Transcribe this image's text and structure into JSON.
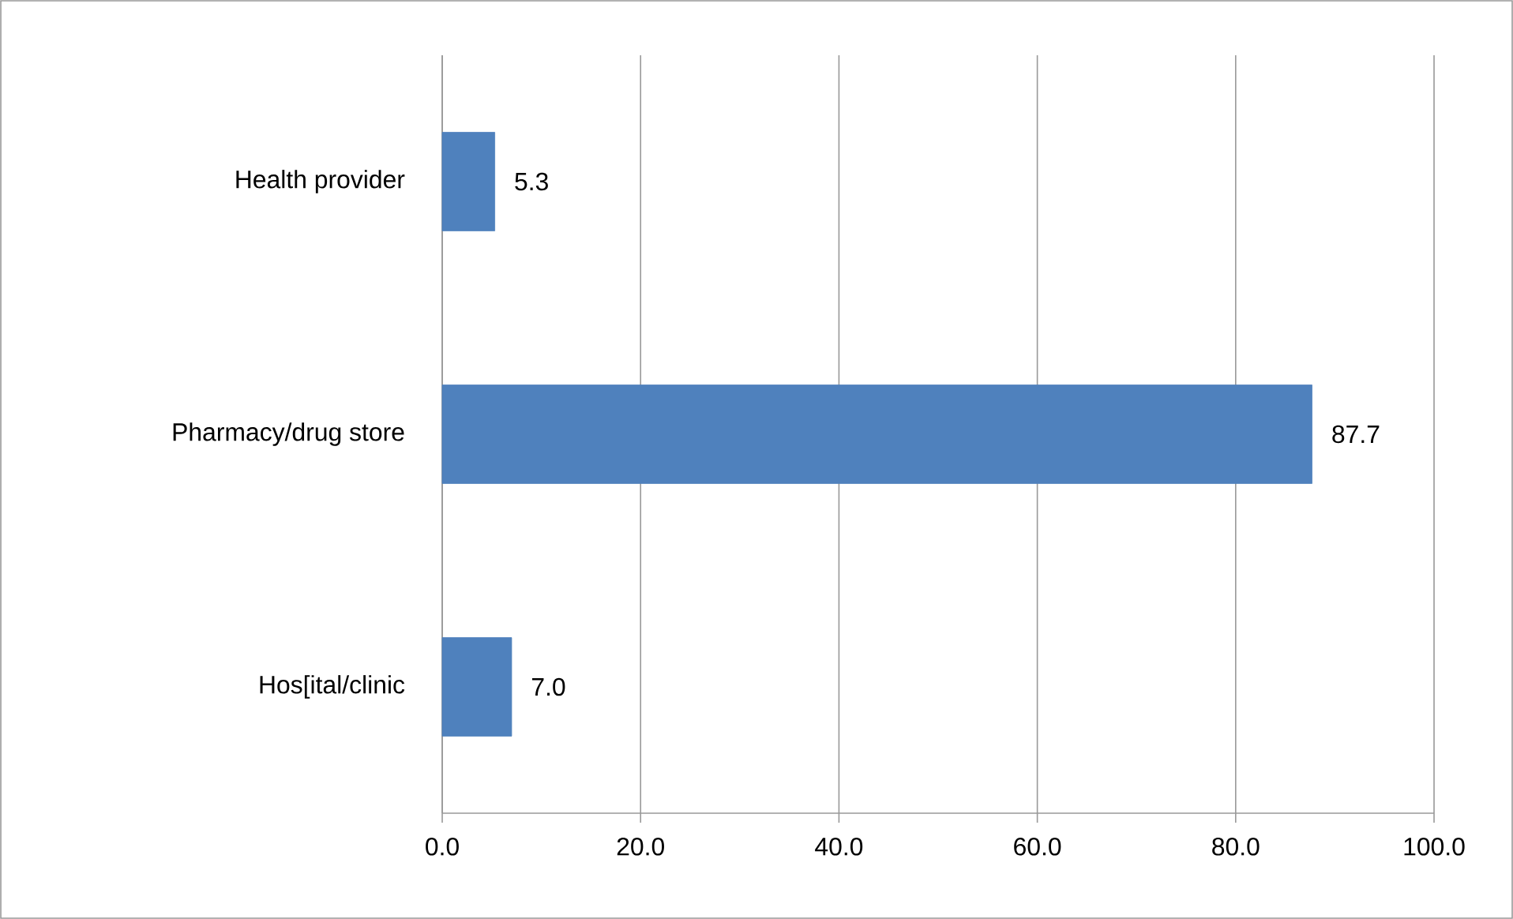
{
  "chart_data": {
    "type": "bar",
    "orientation": "horizontal",
    "categories": [
      "Health provider",
      "Pharmacy/drug store",
      "Hos[ital/clinic"
    ],
    "values": [
      5.3,
      87.7,
      7.0
    ],
    "value_labels": [
      "5.3",
      "87.7",
      "7.0"
    ],
    "color": "#4f81bd",
    "xlim": [
      0,
      100
    ],
    "xticks": [
      {
        "value": 0,
        "label": "0.0"
      },
      {
        "value": 20,
        "label": "20.0"
      },
      {
        "value": 40,
        "label": "40.0"
      },
      {
        "value": 60,
        "label": "60.0"
      },
      {
        "value": 80,
        "label": "80.0"
      },
      {
        "value": 100,
        "label": "100.0"
      }
    ],
    "grid": "x"
  }
}
